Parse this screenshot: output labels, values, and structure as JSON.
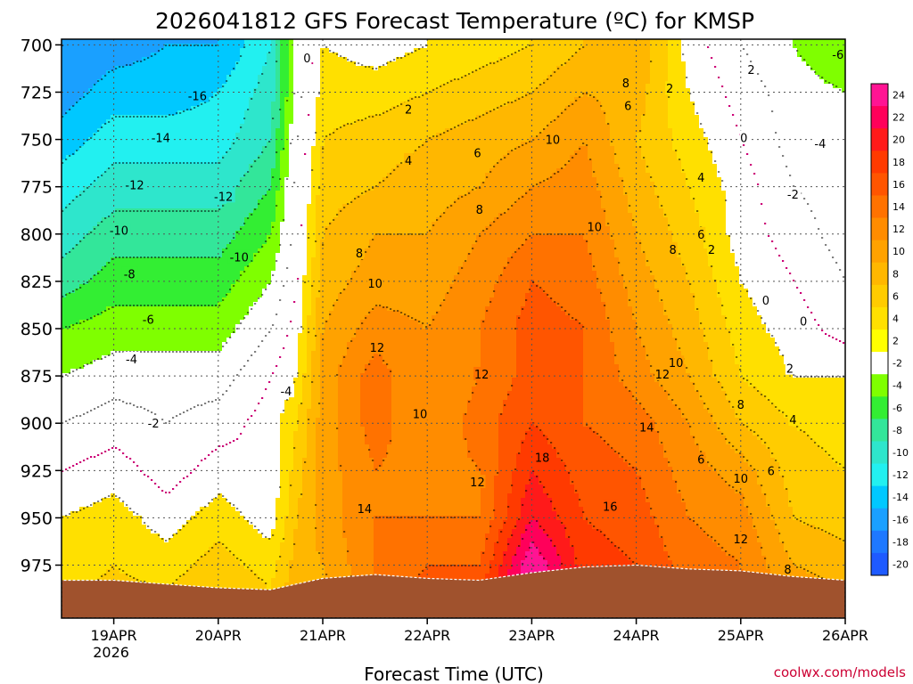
{
  "chart_data": {
    "type": "heatmap",
    "title": "2026041812 GFS Forecast Temperature (ºC) for KMSP",
    "xlabel": "Forecast Time (UTC)",
    "ylabel": "",
    "credit": "coolwx.com/models",
    "x_ticks": [
      {
        "label": "19APR",
        "sub": "2026",
        "day": 0
      },
      {
        "label": "20APR",
        "sub": "",
        "day": 1
      },
      {
        "label": "21APR",
        "sub": "",
        "day": 2
      },
      {
        "label": "22APR",
        "sub": "",
        "day": 3
      },
      {
        "label": "23APR",
        "sub": "",
        "day": 4
      },
      {
        "label": "24APR",
        "sub": "",
        "day": 5
      },
      {
        "label": "25APR",
        "sub": "",
        "day": 6
      },
      {
        "label": "26APR",
        "sub": "",
        "day": 7
      }
    ],
    "xlim": [
      -0.5,
      7.0
    ],
    "y_ticks": [
      700,
      725,
      750,
      775,
      800,
      825,
      850,
      875,
      900,
      925,
      950,
      975
    ],
    "ylim": [
      697,
      1003
    ],
    "y_axis_inverted": true,
    "colorbar": {
      "levels": [
        24,
        22,
        20,
        18,
        16,
        14,
        12,
        10,
        8,
        6,
        4,
        2,
        -2,
        -4,
        -6,
        -8,
        -10,
        -12,
        -14,
        -16,
        -18,
        -20
      ],
      "colors": [
        "#ff1493",
        "#ff005a",
        "#ff1a1a",
        "#ff3a00",
        "#ff5500",
        "#ff7200",
        "#ff8c00",
        "#ffa200",
        "#ffb700",
        "#ffcc00",
        "#ffe000",
        "#ffff00",
        "#ffffff",
        "#7fff00",
        "#33ee33",
        "#33e69a",
        "#2ee6cc",
        "#22f0f0",
        "#00c8ff",
        "#1aa0ff",
        "#1e78ff",
        "#1e5aff"
      ]
    },
    "terrain_color": "#a0522d",
    "zero_contour_color": "#cc0077",
    "columns": [
      {
        "day": -0.5,
        "temps": [
          -18,
          -17,
          -15,
          -13,
          -11,
          -9,
          -6,
          -4,
          -2,
          0,
          2,
          3
        ]
      },
      {
        "day": 0.0,
        "temps": [
          -17,
          -15,
          -13,
          -11,
          -9,
          -7,
          -5,
          -3,
          -1,
          1,
          3,
          4
        ]
      },
      {
        "day": 0.5,
        "temps": [
          -16,
          -15,
          -13,
          -11,
          -9,
          -7,
          -5,
          -3,
          -2,
          -1,
          1,
          3
        ]
      },
      {
        "day": 1.0,
        "temps": [
          -16,
          -14,
          -13,
          -11,
          -9,
          -7,
          -5,
          -3,
          -1,
          1,
          3,
          5
        ]
      },
      {
        "day": 1.5,
        "temps": [
          -12,
          -11,
          -10,
          -8,
          -6,
          -4,
          -2,
          0,
          1,
          0,
          1,
          3
        ]
      },
      {
        "day": 1.75,
        "temps": [
          -3,
          -3,
          -2,
          -1,
          -1,
          0,
          1,
          2,
          4,
          5,
          6,
          7
        ]
      },
      {
        "day": 2.0,
        "temps": [
          2,
          3,
          4,
          5,
          6,
          7,
          8,
          9,
          9,
          9,
          9,
          8
        ]
      },
      {
        "day": 2.5,
        "temps": [
          1,
          3,
          5,
          6,
          8,
          9,
          11,
          13,
          13,
          12,
          12,
          12
        ]
      },
      {
        "day": 3.0,
        "temps": [
          2,
          4,
          6,
          7,
          8,
          9,
          10,
          10,
          10,
          11,
          12,
          14
        ]
      },
      {
        "day": 3.5,
        "temps": [
          3,
          5,
          7,
          8,
          10,
          11,
          12,
          12,
          13,
          12,
          12,
          14
        ]
      },
      {
        "day": 4.0,
        "temps": [
          4,
          6,
          8,
          10,
          12,
          14,
          15,
          15,
          16,
          18,
          20,
          24
        ]
      },
      {
        "day": 4.5,
        "temps": [
          6,
          8,
          10,
          11,
          12,
          13,
          14,
          14,
          14,
          15,
          16,
          17
        ]
      },
      {
        "day": 5.0,
        "temps": [
          8,
          7,
          6,
          7,
          8,
          9,
          10,
          11,
          13,
          14,
          15,
          16
        ]
      },
      {
        "day": 5.5,
        "temps": [
          1,
          2,
          3,
          4,
          5,
          6,
          7,
          8,
          10,
          11,
          12,
          13
        ]
      },
      {
        "day": 6.0,
        "temps": [
          -2,
          -1,
          0,
          1,
          1,
          2,
          3,
          4,
          6,
          9,
          11,
          12
        ]
      },
      {
        "day": 6.5,
        "temps": [
          -4,
          -3,
          -3,
          -2,
          -1,
          0,
          1,
          2,
          4,
          5,
          6,
          8
        ]
      },
      {
        "day": 7.0,
        "temps": [
          -6,
          -4,
          -3,
          -3,
          -3,
          -2,
          -1,
          2,
          3,
          4,
          5,
          7
        ]
      }
    ],
    "surface_pressure": [
      {
        "day": -0.5,
        "p": 983
      },
      {
        "day": 0.0,
        "p": 983
      },
      {
        "day": 0.5,
        "p": 985
      },
      {
        "day": 1.0,
        "p": 987
      },
      {
        "day": 1.5,
        "p": 988
      },
      {
        "day": 2.0,
        "p": 982
      },
      {
        "day": 2.5,
        "p": 980
      },
      {
        "day": 3.0,
        "p": 982
      },
      {
        "day": 3.5,
        "p": 983
      },
      {
        "day": 4.0,
        "p": 979
      },
      {
        "day": 4.5,
        "p": 976
      },
      {
        "day": 5.0,
        "p": 975
      },
      {
        "day": 5.5,
        "p": 977
      },
      {
        "day": 6.0,
        "p": 978
      },
      {
        "day": 6.5,
        "p": 981
      },
      {
        "day": 7.0,
        "p": 983
      }
    ],
    "contour_labels": [
      {
        "text": "-16",
        "day": 0.8,
        "p": 727
      },
      {
        "text": "-14",
        "day": 0.45,
        "p": 749
      },
      {
        "text": "-12",
        "day": 0.2,
        "p": 774
      },
      {
        "text": "-12",
        "day": 1.05,
        "p": 780
      },
      {
        "text": "-10",
        "day": 0.05,
        "p": 798
      },
      {
        "text": "-10",
        "day": 1.2,
        "p": 812
      },
      {
        "text": "-8",
        "day": 0.15,
        "p": 821
      },
      {
        "text": "-6",
        "day": 0.33,
        "p": 845
      },
      {
        "text": "-4",
        "day": 0.17,
        "p": 866
      },
      {
        "text": "-2",
        "day": 0.38,
        "p": 900
      },
      {
        "text": "-4",
        "day": 1.65,
        "p": 883
      },
      {
        "text": "0",
        "day": 1.85,
        "p": 707
      },
      {
        "text": "2",
        "day": 2.82,
        "p": 734
      },
      {
        "text": "4",
        "day": 2.82,
        "p": 761
      },
      {
        "text": "6",
        "day": 3.48,
        "p": 757
      },
      {
        "text": "8",
        "day": 3.5,
        "p": 787
      },
      {
        "text": "8",
        "day": 2.35,
        "p": 810
      },
      {
        "text": "10",
        "day": 2.5,
        "p": 826
      },
      {
        "text": "12",
        "day": 2.52,
        "p": 860
      },
      {
        "text": "12",
        "day": 3.52,
        "p": 874
      },
      {
        "text": "10",
        "day": 2.93,
        "p": 895
      },
      {
        "text": "14",
        "day": 2.4,
        "p": 945
      },
      {
        "text": "12",
        "day": 3.48,
        "p": 931
      },
      {
        "text": "18",
        "day": 4.1,
        "p": 918
      },
      {
        "text": "16",
        "day": 4.75,
        "p": 944
      },
      {
        "text": "14",
        "day": 5.1,
        "p": 902
      },
      {
        "text": "12",
        "day": 5.25,
        "p": 874
      },
      {
        "text": "10",
        "day": 5.38,
        "p": 868
      },
      {
        "text": "10",
        "day": 4.2,
        "p": 750
      },
      {
        "text": "10",
        "day": 4.6,
        "p": 796
      },
      {
        "text": "8",
        "day": 4.9,
        "p": 720
      },
      {
        "text": "6",
        "day": 4.92,
        "p": 732
      },
      {
        "text": "2",
        "day": 5.32,
        "p": 723
      },
      {
        "text": "0",
        "day": 6.03,
        "p": 749
      },
      {
        "text": "4",
        "day": 5.62,
        "p": 770
      },
      {
        "text": "6",
        "day": 5.62,
        "p": 800
      },
      {
        "text": "8",
        "day": 5.35,
        "p": 808
      },
      {
        "text": "2",
        "day": 5.72,
        "p": 808
      },
      {
        "text": "2",
        "day": 6.1,
        "p": 713
      },
      {
        "text": "-6",
        "day": 6.93,
        "p": 705
      },
      {
        "text": "-4",
        "day": 6.76,
        "p": 752
      },
      {
        "text": "-2",
        "day": 6.5,
        "p": 779
      },
      {
        "text": "0",
        "day": 6.24,
        "p": 835
      },
      {
        "text": "0",
        "day": 6.6,
        "p": 846
      },
      {
        "text": "2",
        "day": 6.47,
        "p": 871
      },
      {
        "text": "4",
        "day": 6.5,
        "p": 898
      },
      {
        "text": "6",
        "day": 6.29,
        "p": 925
      },
      {
        "text": "8",
        "day": 6.0,
        "p": 890
      },
      {
        "text": "6",
        "day": 5.62,
        "p": 919
      },
      {
        "text": "10",
        "day": 6.0,
        "p": 929
      },
      {
        "text": "12",
        "day": 6.0,
        "p": 961
      },
      {
        "text": "8",
        "day": 6.45,
        "p": 977
      }
    ]
  }
}
